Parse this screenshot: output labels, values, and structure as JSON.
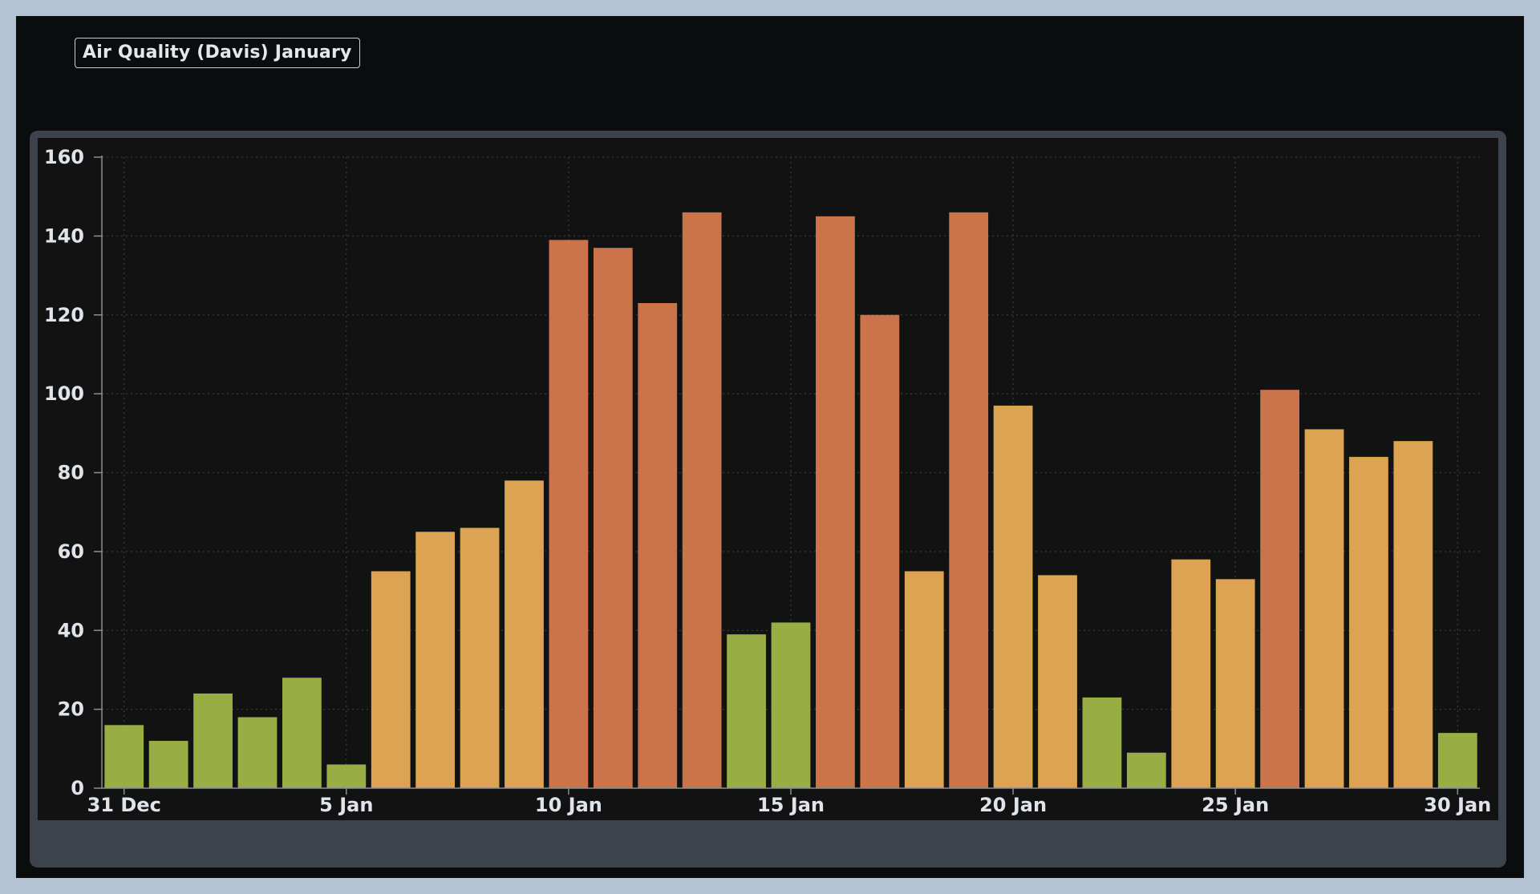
{
  "title": "Air Quality (Davis) January",
  "colors": {
    "good": "#98ae44",
    "moderate": "#dca452",
    "unhealthy": "#cb744b",
    "grid": "#3a3a3a",
    "axis": "#8a8f96"
  },
  "chart_data": {
    "type": "bar",
    "title": "Air Quality (Davis) January",
    "xlabel": "",
    "ylabel": "",
    "ylim": [
      0,
      160
    ],
    "y_ticks": [
      0,
      20,
      40,
      60,
      80,
      100,
      120,
      140,
      160
    ],
    "x_tick_labels": [
      "31 Dec",
      "5 Jan",
      "10 Jan",
      "15 Jan",
      "20 Jan",
      "25 Jan",
      "30 Jan"
    ],
    "grid": true,
    "legend": "none",
    "categories": [
      "31 Dec",
      "1 Jan",
      "2 Jan",
      "3 Jan",
      "4 Jan",
      "5 Jan",
      "6 Jan",
      "7 Jan",
      "8 Jan",
      "9 Jan",
      "10 Jan",
      "11 Jan",
      "12 Jan",
      "13 Jan",
      "14 Jan",
      "15 Jan",
      "16 Jan",
      "17 Jan",
      "18 Jan",
      "19 Jan",
      "20 Jan",
      "21 Jan",
      "22 Jan",
      "23 Jan",
      "24 Jan",
      "25 Jan",
      "26 Jan",
      "27 Jan",
      "28 Jan",
      "29 Jan",
      "30 Jan"
    ],
    "values": [
      16,
      12,
      24,
      18,
      28,
      6,
      55,
      65,
      66,
      78,
      139,
      137,
      123,
      146,
      39,
      42,
      145,
      120,
      55,
      146,
      97,
      54,
      23,
      9,
      58,
      53,
      101,
      91,
      84,
      88,
      14
    ]
  }
}
